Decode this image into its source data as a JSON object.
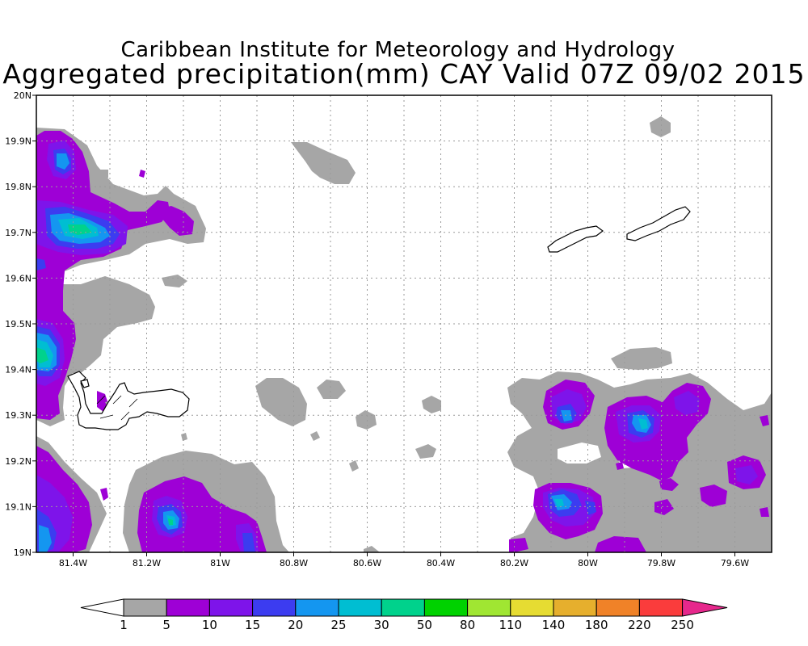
{
  "header": {
    "title": "Caribbean Institute for Meteorology and Hydrology",
    "subtitle": "Aggregated precipitation(mm) CAY Valid 07Z 09/02 2015"
  },
  "map": {
    "lon_range": [
      -81.5,
      -79.5
    ],
    "lat_range": [
      19.0,
      20.0
    ],
    "grid": true,
    "x_tick_labels": [
      {
        "lon": -81.4,
        "label": "81.4W"
      },
      {
        "lon": -81.2,
        "label": "81.2W"
      },
      {
        "lon": -81.0,
        "label": "81W"
      },
      {
        "lon": -80.8,
        "label": "80.8W"
      },
      {
        "lon": -80.6,
        "label": "80.6W"
      },
      {
        "lon": -80.4,
        "label": "80.4W"
      },
      {
        "lon": -80.2,
        "label": "80.2W"
      },
      {
        "lon": -80.0,
        "label": "80W"
      },
      {
        "lon": -79.8,
        "label": "79.8W"
      },
      {
        "lon": -79.6,
        "label": "79.6W"
      }
    ],
    "y_tick_labels": [
      {
        "lat": 20.0,
        "label": "20N"
      },
      {
        "lat": 19.9,
        "label": "19.9N"
      },
      {
        "lat": 19.8,
        "label": "19.8N"
      },
      {
        "lat": 19.7,
        "label": "19.7N"
      },
      {
        "lat": 19.6,
        "label": "19.6N"
      },
      {
        "lat": 19.5,
        "label": "19.5N"
      },
      {
        "lat": 19.4,
        "label": "19.4N"
      },
      {
        "lat": 19.3,
        "label": "19.3N"
      },
      {
        "lat": 19.2,
        "label": "19.2N"
      },
      {
        "lat": 19.1,
        "label": "19.1N"
      },
      {
        "lat": 19.0,
        "label": "19N"
      }
    ]
  },
  "colorbar": {
    "labels": [
      "1",
      "5",
      "10",
      "15",
      "20",
      "25",
      "30",
      "50",
      "80",
      "110",
      "140",
      "180",
      "220",
      "250"
    ],
    "colors": [
      "#a6a6a6",
      "#9e00d6",
      "#7e14ea",
      "#3c3cf0",
      "#1496f0",
      "#00bed2",
      "#00d28c",
      "#00d200",
      "#a0e632",
      "#e6dc32",
      "#e6af2d",
      "#f08228",
      "#fa3c3c",
      "#e6288c"
    ],
    "under_color": "#ffffff"
  }
}
